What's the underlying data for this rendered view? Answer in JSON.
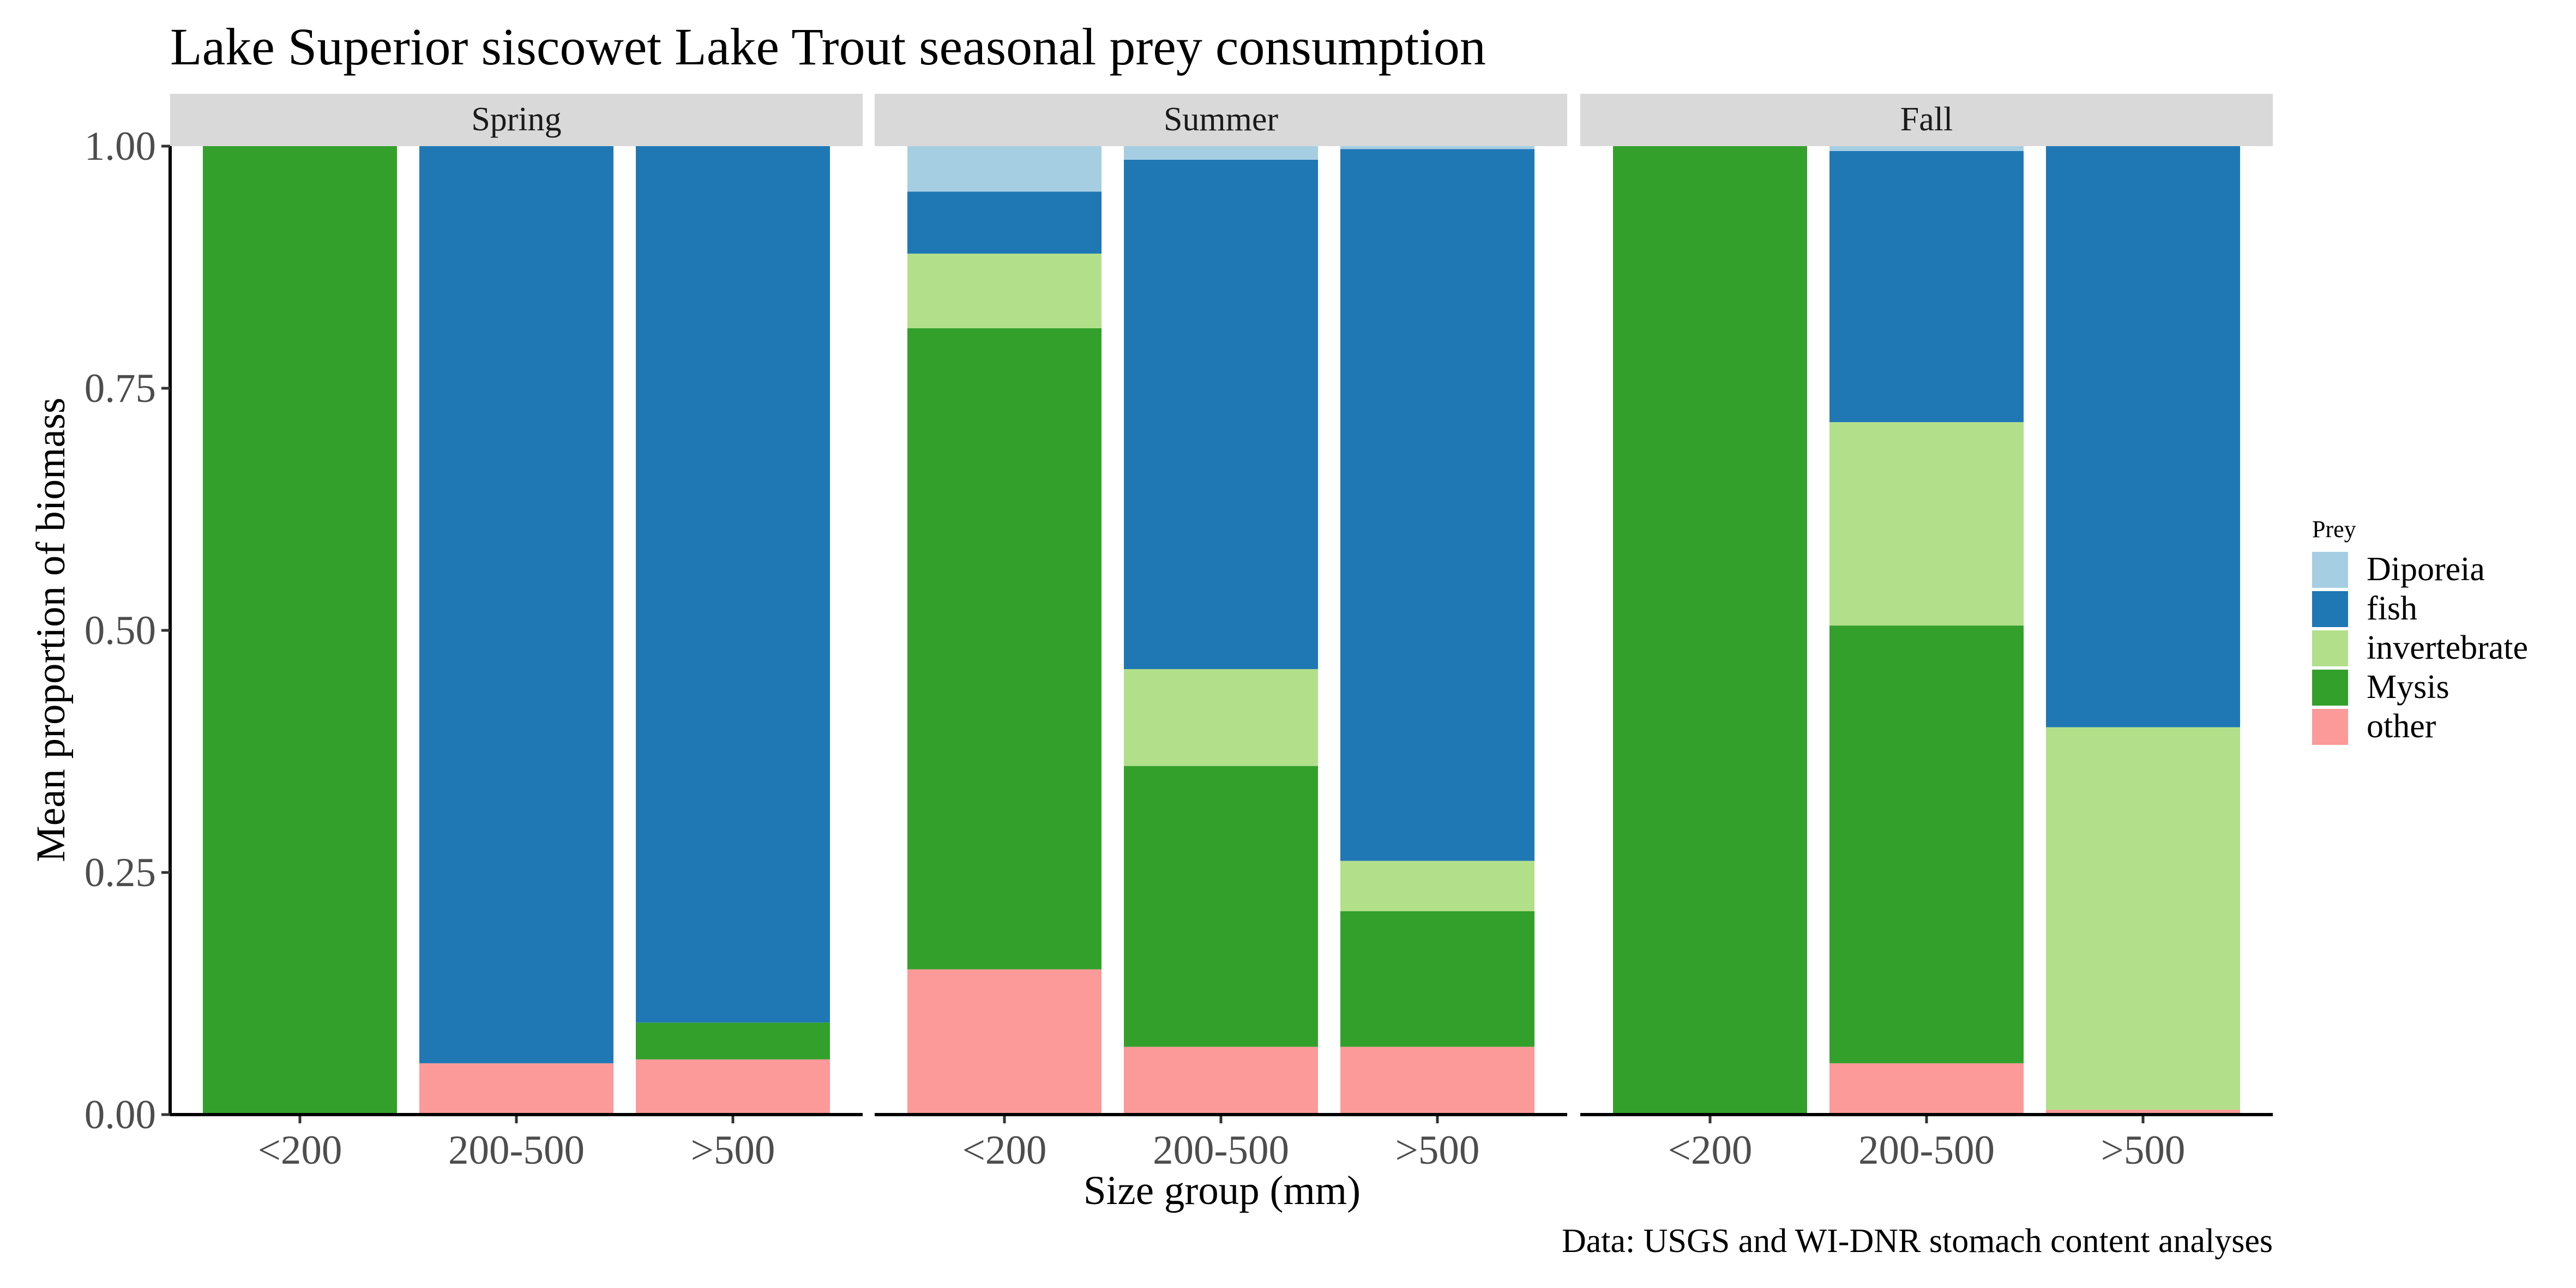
{
  "chart_data": {
    "type": "bar",
    "stacked": true,
    "title": "Lake Superior siscowet Lake Trout seasonal prey consumption",
    "xlabel": "Size group (mm)",
    "ylabel": "Mean proportion of biomass",
    "caption": "Data: USGS and WI-DNR stomach content analyses",
    "ylim": [
      0,
      1
    ],
    "yticks": [
      "0.00",
      "0.25",
      "0.50",
      "0.75",
      "1.00"
    ],
    "grid": false,
    "legend": {
      "title": "Prey",
      "position": "right",
      "entries": [
        {
          "name": "Diporeia",
          "color": "#a6cee3"
        },
        {
          "name": "fish",
          "color": "#1f78b4"
        },
        {
          "name": "invertebrate",
          "color": "#b2df8a"
        },
        {
          "name": "Mysis",
          "color": "#33a02c"
        },
        {
          "name": "other",
          "color": "#fb9a99"
        }
      ]
    },
    "stack_order_bottom_to_top": [
      "other",
      "Mysis",
      "invertebrate",
      "fish",
      "Diporeia"
    ],
    "categories": [
      "<200",
      "200-500",
      ">500"
    ],
    "facets": [
      {
        "name": "Spring",
        "series": [
          {
            "name": "other",
            "values": [
              0.0,
              0.053,
              0.057
            ]
          },
          {
            "name": "Mysis",
            "values": [
              1.0,
              0.0,
              0.038
            ]
          },
          {
            "name": "invertebrate",
            "values": [
              0.0,
              0.0,
              0.0
            ]
          },
          {
            "name": "fish",
            "values": [
              0.0,
              0.947,
              0.905
            ]
          },
          {
            "name": "Diporeia",
            "values": [
              0.0,
              0.0,
              0.0
            ]
          }
        ]
      },
      {
        "name": "Summer",
        "series": [
          {
            "name": "other",
            "values": [
              0.15,
              0.07,
              0.07
            ]
          },
          {
            "name": "Mysis",
            "values": [
              0.662,
              0.29,
              0.14
            ]
          },
          {
            "name": "invertebrate",
            "values": [
              0.077,
              0.1,
              0.052
            ]
          },
          {
            "name": "fish",
            "values": [
              0.064,
              0.526,
              0.735
            ]
          },
          {
            "name": "Diporeia",
            "values": [
              0.047,
              0.014,
              0.003
            ]
          }
        ]
      },
      {
        "name": "Fall",
        "series": [
          {
            "name": "other",
            "values": [
              0.0,
              0.053,
              0.005
            ]
          },
          {
            "name": "Mysis",
            "values": [
              1.0,
              0.452,
              0.0
            ]
          },
          {
            "name": "invertebrate",
            "values": [
              0.0,
              0.21,
              0.395
            ]
          },
          {
            "name": "fish",
            "values": [
              0.0,
              0.28,
              0.6
            ]
          },
          {
            "name": "Diporeia",
            "values": [
              0.0,
              0.005,
              0.0
            ]
          }
        ]
      }
    ]
  }
}
